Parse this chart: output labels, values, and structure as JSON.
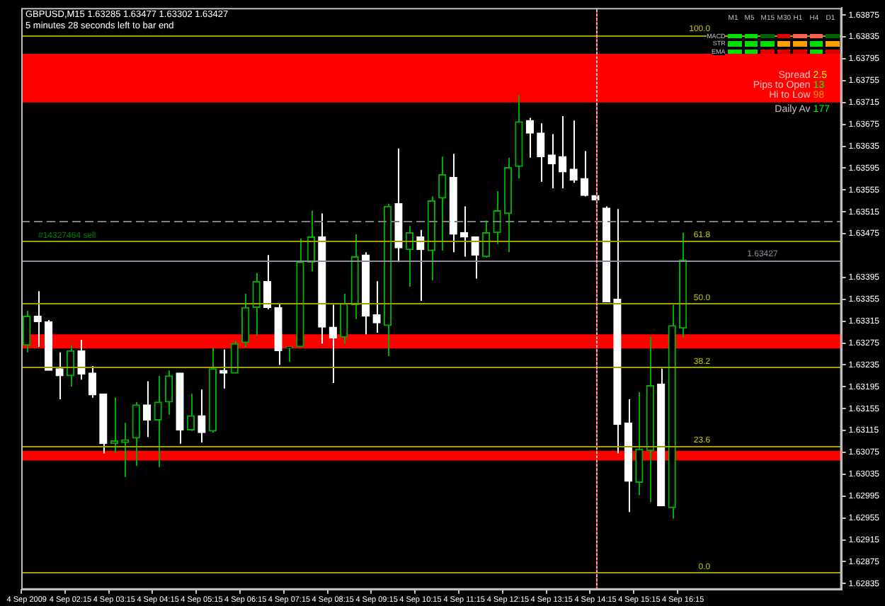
{
  "chart_data": {
    "type": "candlestick",
    "title": "GBPUSD,M15  1.63285 1.63477 1.63302 1.63427",
    "subtitle": "5 minutes 28 seconds left to bar end",
    "categories": [
      "4 Sep 2009",
      null,
      null,
      null,
      "4 Sep 02:15",
      null,
      null,
      null,
      "4 Sep 03:15",
      null,
      null,
      null,
      "4 Sep 04:15",
      null,
      null,
      null,
      "4 Sep 05:15",
      null,
      null,
      null,
      "4 Sep 06:15",
      null,
      null,
      null,
      "4 Sep 07:15",
      null,
      null,
      null,
      "4 Sep 08:15",
      null,
      null,
      null,
      "4 Sep 09:15",
      null,
      null,
      null,
      "4 Sep 10:15",
      null,
      null,
      null,
      "4 Sep 11:15",
      null,
      null,
      null,
      "4 Sep 12:15",
      null,
      null,
      null,
      "4 Sep 13:15",
      null,
      null,
      null,
      "4 Sep 14:15",
      null,
      null,
      null,
      "4 Sep 15:15",
      null,
      null,
      null,
      "4 Sep 16:15",
      null,
      null,
      null,
      null,
      null,
      null,
      null,
      null,
      null,
      null,
      null,
      null,
      null,
      null
    ],
    "ohlc": [
      [
        1.63271,
        1.63334,
        1.63258,
        1.63324
      ],
      [
        1.63324,
        1.6337,
        1.63268,
        1.63314
      ],
      [
        1.63314,
        1.63317,
        1.63225,
        1.63225
      ],
      [
        1.63228,
        1.63258,
        1.63172,
        1.63215
      ],
      [
        1.63215,
        1.63271,
        1.63195,
        1.63261
      ],
      [
        1.63261,
        1.63281,
        1.63208,
        1.63218
      ],
      [
        1.6322,
        1.63233,
        1.63175,
        1.6318
      ],
      [
        1.63182,
        1.63182,
        1.63073,
        1.63091
      ],
      [
        1.63091,
        1.63175,
        1.63073,
        1.63096
      ],
      [
        1.63093,
        1.63129,
        1.6303,
        1.63098
      ],
      [
        1.63101,
        1.63167,
        1.6305,
        1.63162
      ],
      [
        1.63162,
        1.63205,
        1.63103,
        1.63134
      ],
      [
        1.63134,
        1.63215,
        1.63048,
        1.63167
      ],
      [
        1.63167,
        1.63225,
        1.63144,
        1.63215
      ],
      [
        1.6322,
        1.6322,
        1.63091,
        1.63116
      ],
      [
        1.63116,
        1.63182,
        1.63114,
        1.63142
      ],
      [
        1.63142,
        1.6319,
        1.63093,
        1.63111
      ],
      [
        1.63114,
        1.63266,
        1.63111,
        1.63228
      ],
      [
        1.63225,
        1.63263,
        1.63192,
        1.6322
      ],
      [
        1.6322,
        1.63279,
        1.6322,
        1.63274
      ],
      [
        1.63276,
        1.63365,
        1.63268,
        1.6334
      ],
      [
        1.6334,
        1.63403,
        1.63289,
        1.63388
      ],
      [
        1.63388,
        1.63436,
        1.63337,
        1.6334
      ],
      [
        1.6334,
        1.63347,
        1.63235,
        1.63261
      ],
      [
        1.63266,
        1.63268,
        1.63241,
        1.63268
      ],
      [
        1.63268,
        1.63466,
        1.63268,
        1.63423
      ],
      [
        1.63423,
        1.63517,
        1.63406,
        1.63469
      ],
      [
        1.63469,
        1.63512,
        1.63274,
        1.63304
      ],
      [
        1.63304,
        1.63345,
        1.63202,
        1.63284
      ],
      [
        1.63286,
        1.63365,
        1.63274,
        1.63347
      ],
      [
        1.63345,
        1.63474,
        1.63319,
        1.63433
      ],
      [
        1.63436,
        1.63441,
        1.63291,
        1.63324
      ],
      [
        1.63327,
        1.63388,
        1.63294,
        1.63312
      ],
      [
        1.63307,
        1.6353,
        1.63251,
        1.63525
      ],
      [
        1.6353,
        1.63631,
        1.63423,
        1.63449
      ],
      [
        1.63446,
        1.63489,
        1.63378,
        1.63477
      ],
      [
        1.63469,
        1.63482,
        1.63352,
        1.63446
      ],
      [
        1.63444,
        1.63543,
        1.6339,
        1.63535
      ],
      [
        1.6354,
        1.63616,
        1.63444,
        1.63583
      ],
      [
        1.63578,
        1.63621,
        1.63441,
        1.63474
      ],
      [
        1.63477,
        1.63525,
        1.63433,
        1.63469
      ],
      [
        1.63469,
        1.63469,
        1.63393,
        1.63436
      ],
      [
        1.63433,
        1.63499,
        1.63431,
        1.63477
      ],
      [
        1.63477,
        1.63553,
        1.63456,
        1.63517
      ],
      [
        1.63512,
        1.63614,
        1.63441,
        1.63596
      ],
      [
        1.63598,
        1.63728,
        1.63576,
        1.6368
      ],
      [
        1.63682,
        1.63687,
        1.63614,
        1.63659
      ],
      [
        1.63659,
        1.63677,
        1.6357,
        1.63616
      ],
      [
        1.63619,
        1.63657,
        1.63558,
        1.63603
      ],
      [
        1.63616,
        1.6369,
        1.63558,
        1.63588
      ],
      [
        1.63593,
        1.63682,
        1.63568,
        1.63573
      ],
      [
        1.63576,
        1.63626,
        1.63543,
        1.63545
      ],
      [
        1.63545,
        1.63596,
        1.63494,
        1.63537
      ],
      [
        1.63522,
        1.63525,
        1.6335,
        1.6335
      ],
      [
        1.63355,
        1.6352,
        1.63073,
        1.63126
      ],
      [
        1.63129,
        1.63172,
        1.62966,
        1.63022
      ],
      [
        1.6302,
        1.63185,
        1.62997,
        1.63081
      ],
      [
        1.63078,
        1.63286,
        1.62984,
        1.63197
      ],
      [
        1.632,
        1.63228,
        1.62977,
        1.62977
      ],
      [
        1.62974,
        1.63345,
        1.62954,
        1.63307
      ],
      [
        1.63302,
        1.63477,
        1.63285,
        1.63427
      ],
      null,
      null,
      null,
      null,
      null,
      null,
      null,
      null,
      null,
      null,
      null,
      null,
      null,
      null
    ],
    "colors": [
      "#00b000",
      "#ffffff",
      "#ffffff",
      "#ffffff",
      "#00b000",
      "#ffffff",
      "#ffffff",
      "#ffffff",
      "#00b000",
      "#00b000",
      "#00b000",
      "#ffffff",
      "#00b000",
      "#00b000",
      "#ffffff",
      "#00b000",
      "#ffffff",
      "#00b000",
      "#ffffff",
      "#00b000",
      "#00b000",
      "#00b000",
      "#ffffff",
      "#ffffff",
      "#00b000",
      "#00b000",
      "#00b000",
      "#ffffff",
      "#ffffff",
      "#00b000",
      "#00b000",
      "#ffffff",
      "#ffffff",
      "#00b000",
      "#ffffff",
      "#00b000",
      "#ffffff",
      "#00b000",
      "#00b000",
      "#ffffff",
      "#ffffff",
      "#ffffff",
      "#00b000",
      "#00b000",
      "#00b000",
      "#00b000",
      "#ffffff",
      "#ffffff",
      "#ffffff",
      "#ffffff",
      "#ffffff",
      "#ffffff",
      "#ffffff",
      "#ffffff",
      "#ffffff",
      "#ffffff",
      "#00b000",
      "#00b000",
      "#ffffff",
      "#00b000",
      "#00b000",
      null,
      null,
      null,
      null,
      null,
      null,
      null,
      null,
      null,
      null,
      null,
      null,
      null,
      null
    ],
    "ylim": [
      1.62824,
      1.63888
    ],
    "yticks": [
      1.62835,
      1.62875,
      1.62915,
      1.62955,
      1.62995,
      1.63035,
      1.63075,
      1.63115,
      1.63155,
      1.63195,
      1.63235,
      1.63275,
      1.63315,
      1.63355,
      1.63395,
      1.63475,
      1.63515,
      1.63555,
      1.63595,
      1.63635,
      1.63675,
      1.63715,
      1.63755,
      1.63795,
      1.63835,
      1.63875
    ],
    "bands": [
      {
        "axis": "y",
        "from": 1.63715,
        "to": 1.63804,
        "color": "#ff0000"
      },
      {
        "axis": "y",
        "from": 1.63265,
        "to": 1.63291,
        "color": "#ff0000"
      },
      {
        "axis": "y",
        "from": 1.6306,
        "to": 1.63078,
        "color": "#ff0000"
      }
    ],
    "ref_lines": [
      {
        "axis": "y",
        "value": 1.63499,
        "color": "#808080",
        "line_style": "dashed"
      },
      {
        "axis": "y",
        "value": 1.63461,
        "label": "#14327464 sell",
        "color": "#008000",
        "line_style": "dashed"
      },
      {
        "axis": "y",
        "value": 1.63427,
        "label": "1.63427",
        "color": "#8c8c9c"
      },
      {
        "axis": "y",
        "value": 1.63839,
        "color": "#a0a000"
      },
      {
        "axis": "y",
        "value": 1.63463,
        "color": "#a0a000"
      },
      {
        "axis": "y",
        "value": 1.63347,
        "color": "#a0a000"
      },
      {
        "axis": "y",
        "value": 1.63231,
        "color": "#a0a000"
      },
      {
        "axis": "y",
        "value": 1.63087,
        "color": "#a0a000"
      },
      {
        "axis": "y",
        "value": 1.62855,
        "color": "#a0a000"
      },
      {
        "axis": "x",
        "value": "4 Sep 14:15",
        "color": "#c0c0c0"
      },
      {
        "axis": "x",
        "value": "4 Sep 14:15",
        "color": "#ff0000",
        "line_style": "dotted"
      }
    ],
    "annotations": [
      "M1",
      "M5",
      "M15",
      "M30",
      "H1",
      "H4",
      "D1",
      "MACD",
      "STR",
      "EMA",
      "Spread",
      "2.5",
      "Pips to Open",
      "13",
      "Hi to Low",
      "98",
      "Daily Av",
      "177",
      {
        "text": "100.0",
        "y": 1.63839
      },
      {
        "text": "61.8",
        "y": 1.63463
      },
      {
        "text": "50.0",
        "y": 1.63347
      },
      {
        "text": "38.2",
        "y": 1.63231
      },
      {
        "text": "23.6",
        "y": 1.63087
      },
      {
        "text": "0.0",
        "y": 1.62855
      }
    ]
  }
}
